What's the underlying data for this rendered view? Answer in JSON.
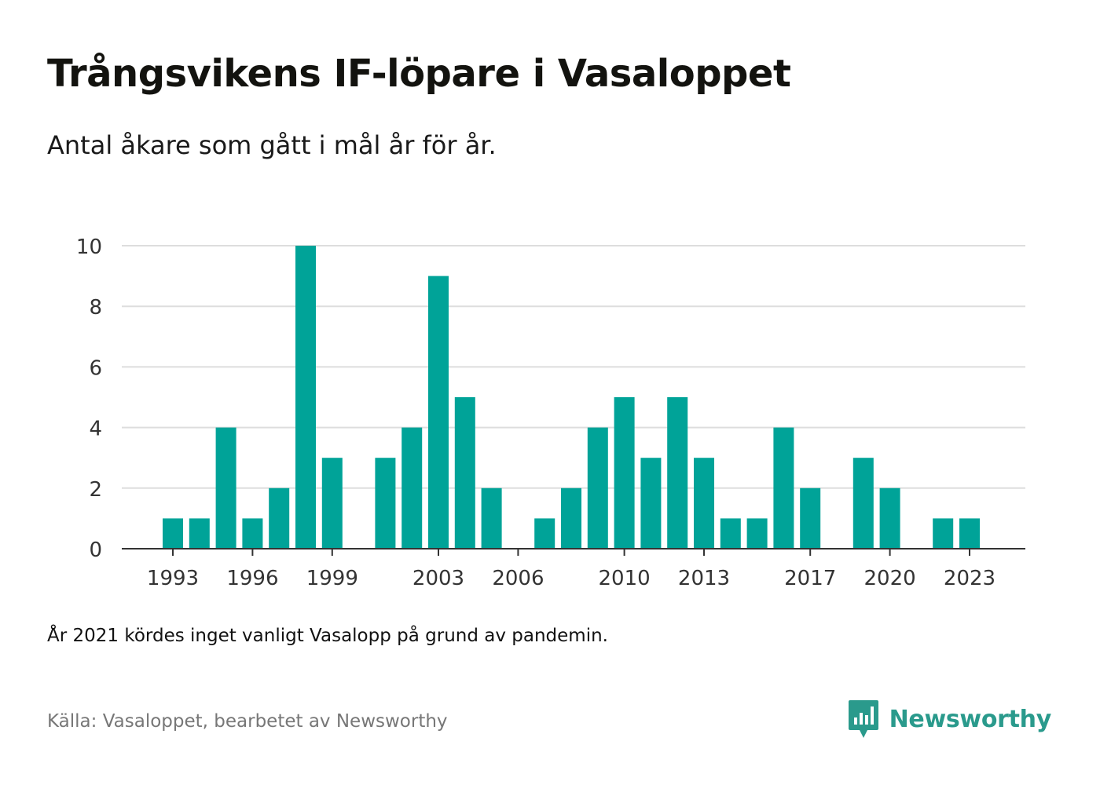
{
  "header": {
    "title": "Trångsvikens IF-löpare i Vasaloppet",
    "subtitle": "Antal åkare som gått i mål år för år."
  },
  "footer": {
    "note": "År 2021 kördes inget vanligt Vasalopp på grund av pandemin.",
    "source": "Källa: Vasaloppet, bearbetet av Newsworthy",
    "brand": "Newsworthy"
  },
  "colors": {
    "bar": "#00a398",
    "grid": "#dddddd",
    "axis": "#333333",
    "brand": "#2a9a8c"
  },
  "chart_data": {
    "type": "bar",
    "title": "Trångsvikens IF-löpare i Vasaloppet",
    "subtitle": "Antal åkare som gått i mål år för år.",
    "xlabel": "",
    "ylabel": "",
    "ylim": [
      0,
      10
    ],
    "yticks": [
      0,
      2,
      4,
      6,
      8,
      10
    ],
    "xtick_labels": [
      "1993",
      "1996",
      "1999",
      "2003",
      "2006",
      "2010",
      "2013",
      "2017",
      "2020",
      "2023"
    ],
    "categories": [
      "1993",
      "1994",
      "1995",
      "1996",
      "1997",
      "1998",
      "1999",
      "2000",
      "2001",
      "2002",
      "2003",
      "2004",
      "2005",
      "2006",
      "2007",
      "2008",
      "2009",
      "2010",
      "2011",
      "2012",
      "2013",
      "2014",
      "2015",
      "2016",
      "2017",
      "2018",
      "2019",
      "2020",
      "2021",
      "2022",
      "2023"
    ],
    "values": [
      1,
      1,
      4,
      1,
      2,
      10,
      3,
      0,
      3,
      4,
      9,
      5,
      2,
      0,
      1,
      2,
      4,
      5,
      3,
      5,
      3,
      1,
      1,
      4,
      2,
      0,
      3,
      2,
      0,
      1,
      1
    ],
    "grid": true,
    "legend": "none"
  }
}
